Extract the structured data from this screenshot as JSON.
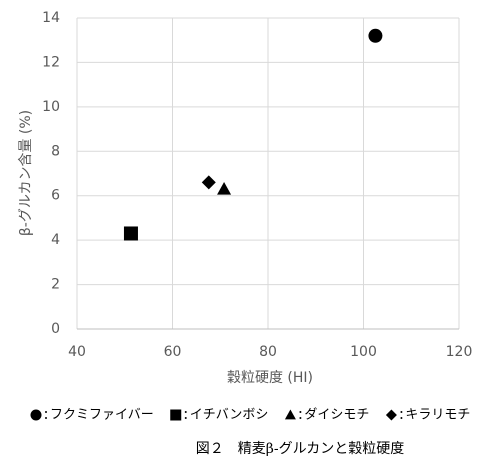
{
  "chart_data": {
    "type": "scatter",
    "x_label": "穀粒硬度 (HI)",
    "y_label": "β-グルカン含量 (%)",
    "caption": "図２　精麦β-グルカンと穀粒硬度",
    "xlim": [
      40,
      120
    ],
    "xticks": [
      40,
      60,
      80,
      100,
      120
    ],
    "ylim": [
      0,
      14
    ],
    "yticks": [
      0,
      2,
      4,
      6,
      8,
      10,
      12,
      14
    ],
    "grid": true,
    "legend": "bottom",
    "series": [
      {
        "name": "フクミファイバー",
        "marker": "circle",
        "color": "#000000",
        "x": [
          102.5
        ],
        "values": [
          13.2
        ]
      },
      {
        "name": "イチバンボシ",
        "marker": "square",
        "color": "#000000",
        "x": [
          51.3
        ],
        "values": [
          4.3
        ]
      },
      {
        "name": "ダイシモチ",
        "marker": "triangle",
        "color": "#000000",
        "x": [
          70.8
        ],
        "values": [
          6.3
        ]
      },
      {
        "name": "キラリモチ",
        "marker": "diamond",
        "color": "#000000",
        "x": [
          67.6
        ],
        "values": [
          6.6
        ]
      }
    ]
  }
}
